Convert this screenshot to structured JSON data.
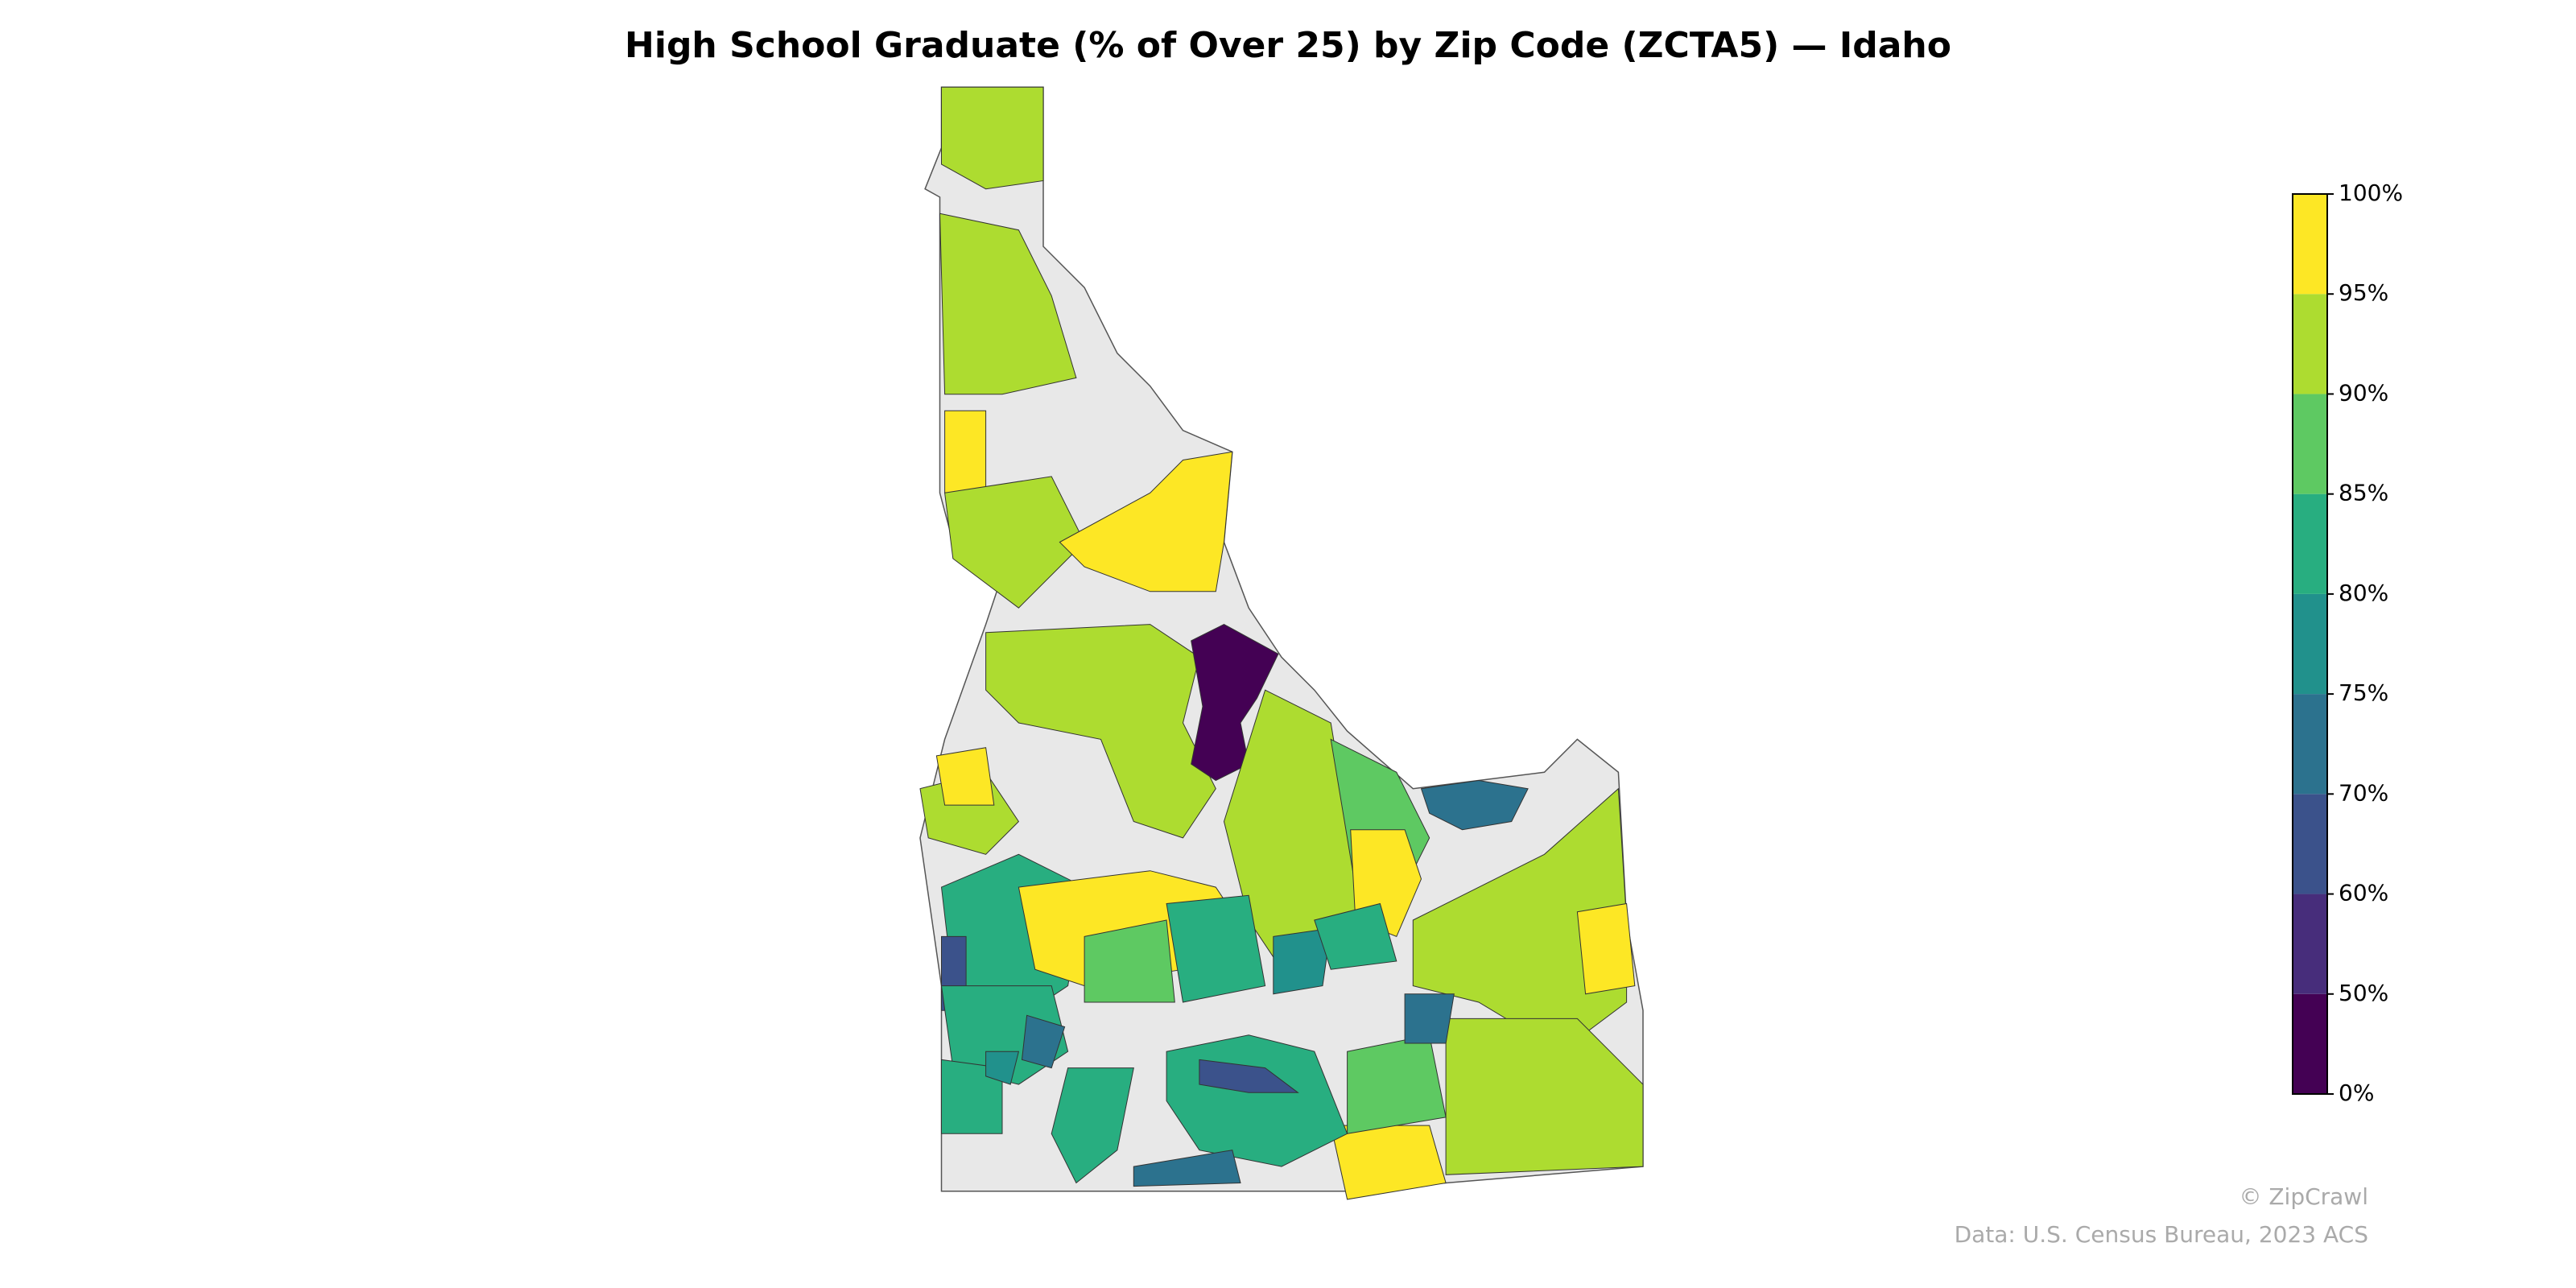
{
  "chart_data": {
    "type": "choropleth",
    "title": "High School Graduate (% of Over 25) by Zip Code (ZCTA5) — Idaho",
    "colorbar": {
      "ticks": [
        {
          "value": 0,
          "label": "0%"
        },
        {
          "value": 50,
          "label": "50%"
        },
        {
          "value": 60,
          "label": "60%"
        },
        {
          "value": 70,
          "label": "70%"
        },
        {
          "value": 75,
          "label": "75%"
        },
        {
          "value": 80,
          "label": "80%"
        },
        {
          "value": 85,
          "label": "85%"
        },
        {
          "value": 90,
          "label": "90%"
        },
        {
          "value": 95,
          "label": "95%"
        },
        {
          "value": 100,
          "label": "100%"
        }
      ],
      "colors": [
        "#440154",
        "#472d7b",
        "#3b528b",
        "#2c728e",
        "#21918c",
        "#28ae80",
        "#5ec962",
        "#addc30",
        "#fde725"
      ],
      "no_data_color": "#e8e8e8"
    },
    "credit": "© ZipCrawl",
    "source": "Data: U.S. Census Bureau, 2023 ACS"
  }
}
